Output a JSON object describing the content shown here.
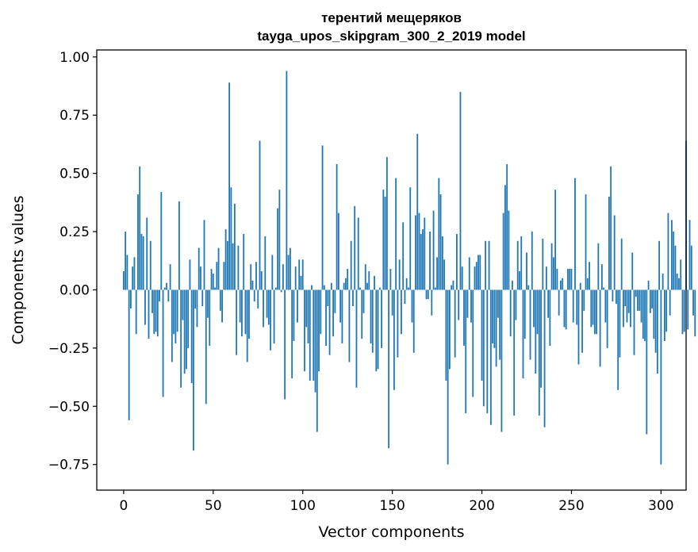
{
  "chart_data": {
    "type": "bar",
    "title": "терентий мещеряков",
    "subtitle": "tayga_upos_skipgram_300_2_2019 model",
    "xlabel": "Vector components",
    "ylabel": "Components values",
    "xlim": [
      -15,
      314
    ],
    "ylim": [
      -0.86,
      1.03
    ],
    "xticks": [
      0,
      50,
      100,
      150,
      200,
      250,
      300
    ],
    "xtick_labels": [
      "0",
      "50",
      "100",
      "150",
      "200",
      "250",
      "300"
    ],
    "yticks": [
      1.0,
      0.75,
      0.5,
      0.25,
      0.0,
      -0.25,
      -0.5,
      -0.75
    ],
    "ytick_labels": [
      "1.00",
      "0.75",
      "0.50",
      "0.25",
      "0.00",
      "−0.25",
      "−0.50",
      "−0.75"
    ],
    "bar_color": "#1f77b4",
    "grid": false,
    "values": [
      0.08,
      0.25,
      0.15,
      -0.56,
      -0.08,
      0.1,
      0.14,
      -0.19,
      0.41,
      0.53,
      0.24,
      0.23,
      -0.15,
      0.31,
      -0.21,
      0.21,
      -0.1,
      -0.19,
      -0.18,
      -0.2,
      -0.05,
      0.42,
      -0.46,
      0.01,
      0.03,
      -0.05,
      0.11,
      -0.31,
      -0.19,
      -0.23,
      -0.18,
      0.38,
      -0.42,
      -0.13,
      -0.36,
      -0.34,
      -0.25,
      0.13,
      -0.4,
      -0.69,
      -0.08,
      -0.16,
      0.18,
      0.1,
      -0.07,
      0.3,
      -0.49,
      -0.12,
      -0.24,
      0.09,
      0.07,
      0.01,
      0.12,
      0.18,
      -0.09,
      -0.14,
      0.12,
      0.26,
      0.21,
      0.89,
      0.44,
      0.2,
      0.37,
      -0.28,
      0.19,
      -0.14,
      -0.2,
      0.24,
      -0.19,
      -0.31,
      -0.21,
      0.11,
      0.04,
      -0.05,
      0.12,
      -0.08,
      0.64,
      0.08,
      -0.16,
      0.23,
      -0.12,
      -0.15,
      -0.26,
      0.15,
      -0.23,
      0.01,
      0.35,
      0.43,
      -0.01,
      0.11,
      -0.47,
      0.94,
      0.15,
      0.18,
      -0.38,
      -0.22,
      0.1,
      -0.14,
      0.13,
      0.06,
      0.13,
      -0.35,
      -0.16,
      -0.23,
      -0.39,
      0.02,
      -0.39,
      -0.44,
      -0.61,
      -0.35,
      -0.19,
      0.62,
      0.02,
      -0.24,
      -0.07,
      -0.28,
      0.03,
      -0.2,
      -0.1,
      0.54,
      0.33,
      -0.14,
      -0.23,
      0.03,
      0.05,
      0.09,
      -0.31,
      0.21,
      -0.07,
      0.36,
      -0.42,
      0.31,
      0.01,
      -0.21,
      -0.1,
      0.11,
      0.03,
      0.08,
      -0.23,
      -0.27,
      0.06,
      -0.35,
      -0.34,
      0.01,
      -0.25,
      0.43,
      0.4,
      0.57,
      -0.68,
      0.09,
      -0.11,
      -0.43,
      0.48,
      -0.29,
      0.13,
      -0.19,
      0.29,
      -0.06,
      0.05,
      0.01,
      0.44,
      -0.14,
      -0.27,
      0.32,
      0.67,
      0.33,
      0.24,
      0.26,
      0.31,
      -0.04,
      -0.04,
      0.25,
      -0.11,
      0.34,
      0.01,
      0.14,
      0.48,
      0.41,
      0.23,
      0.13,
      -0.39,
      -0.75,
      -0.34,
      0.02,
      0.04,
      -0.29,
      0.24,
      -0.13,
      0.85,
      0.1,
      -0.24,
      -0.53,
      -0.12,
      0.14,
      -0.14,
      -0.46,
      0.1,
      0.12,
      0.15,
      0.15,
      -0.39,
      -0.5,
      0.21,
      -0.53,
      0.21,
      -0.58,
      -0.23,
      -0.25,
      -0.33,
      -0.12,
      -0.3,
      -0.61,
      0.33,
      0.45,
      0.54,
      0.34,
      -0.2,
      0.04,
      -0.54,
      -0.13,
      0.21,
      0.08,
      0.23,
      -0.38,
      -0.21,
      0.16,
      0.02,
      -0.3,
      0.25,
      -0.16,
      -0.36,
      -0.19,
      -0.54,
      -0.42,
      0.22,
      -0.59,
      0.1,
      -0.12,
      -0.24,
      0.2,
      0.14,
      0.43,
      0.09,
      -0.11,
      0.04,
      0.05,
      -0.16,
      -0.17,
      0.09,
      0.09,
      0.09,
      -0.14,
      0.48,
      -0.15,
      -0.32,
      0.03,
      -0.27,
      -0.09,
      0.41,
      0.05,
      0.12,
      -0.16,
      -0.15,
      -0.19,
      -0.19,
      0.2,
      -0.33,
      0.11,
      0.01,
      -0.14,
      -0.25,
      0.4,
      0.53,
      -0.05,
      0.32,
      -0.06,
      -0.43,
      -0.29,
      0.22,
      -0.16,
      -0.07,
      -0.14,
      -0.1,
      -0.16,
      0.16,
      -0.28,
      -0.03,
      -0.09,
      -0.09,
      -0.14,
      -0.21,
      -0.22,
      -0.62,
      0.04,
      -0.1,
      -0.08,
      -0.21,
      -0.27,
      -0.36,
      0.21,
      -0.75,
      0.07,
      -0.22,
      -0.18,
      0.33,
      -0.11,
      0.3,
      0.25,
      0.19,
      0.07,
      0.05,
      0.13,
      -0.19,
      -0.18,
      0.64,
      -0.17,
      0.3,
      0.19,
      -0.11,
      -0.2
    ]
  }
}
